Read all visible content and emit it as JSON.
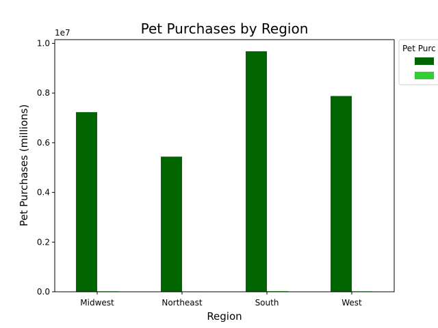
{
  "chart_data": {
    "type": "bar",
    "title": "Pet Purchases by Region",
    "xlabel": "Region",
    "ylabel": "Pet Purchases (millions)",
    "categories": [
      "Midwest",
      "Northeast",
      "South",
      "West"
    ],
    "ylim": [
      0,
      10150000
    ],
    "yticks": [
      0,
      2000000,
      4000000,
      6000000,
      8000000,
      10000000
    ],
    "ytick_labels": [
      "0.0",
      "0.2",
      "0.4",
      "0.6",
      "0.8",
      "1.0"
    ],
    "offset_label": "1e7",
    "grid": false,
    "legend": {
      "title": "Pet Purc",
      "placement": "upper-right-outside",
      "entries": [
        "",
        ""
      ]
    },
    "series": [
      {
        "color": "#006400",
        "values": [
          7230000,
          5440000,
          9680000,
          7880000
        ]
      },
      {
        "color": "#32cd32",
        "values": [
          22000,
          15000,
          26000,
          20000
        ]
      }
    ]
  }
}
